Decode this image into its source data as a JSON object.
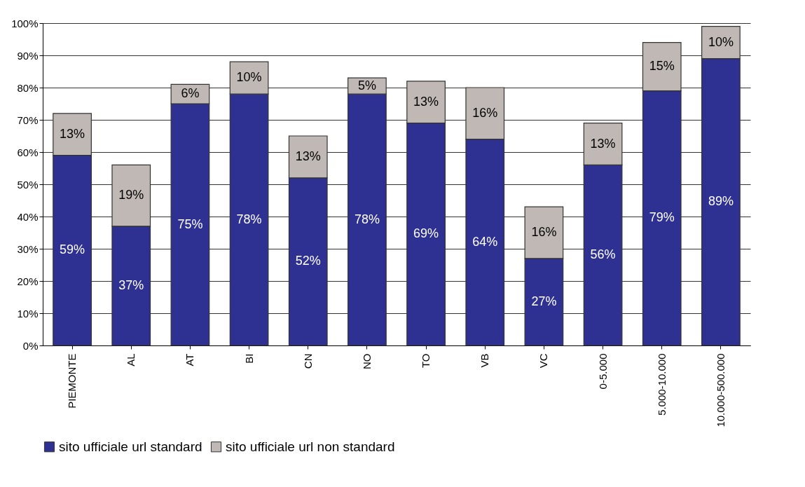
{
  "chart_data": {
    "type": "bar",
    "stacked": true,
    "categories": [
      "PIEMONTE",
      "AL",
      "AT",
      "BI",
      "CN",
      "NO",
      "TO",
      "VB",
      "VC",
      "0-5.000",
      "5.000-10.000",
      "10.000-500.000"
    ],
    "series": [
      {
        "name": "sito ufficiale url standard",
        "color": "#2e3192",
        "values": [
          59,
          37,
          75,
          78,
          52,
          78,
          69,
          64,
          27,
          56,
          79,
          89
        ],
        "value_labels": [
          "59%",
          "37%",
          "75%",
          "78%",
          "52%",
          "78%",
          "69%",
          "64%",
          "27%",
          "56%",
          "79%",
          "89%"
        ]
      },
      {
        "name": "sito ufficiale url non standard",
        "color": "#c0b8b4",
        "values": [
          13,
          19,
          6,
          10,
          13,
          5,
          13,
          16,
          16,
          13,
          15,
          10
        ],
        "value_labels": [
          "13%",
          "19%",
          "6%",
          "10%",
          "13%",
          "5%",
          "13%",
          "16%",
          "16%",
          "13%",
          "15%",
          "10%"
        ]
      }
    ],
    "ylim": [
      0,
      100
    ],
    "yticks": [
      {
        "value": 0,
        "label": "0%"
      },
      {
        "value": 10,
        "label": "10%"
      },
      {
        "value": 20,
        "label": "20%"
      },
      {
        "value": 30,
        "label": "30%"
      },
      {
        "value": 40,
        "label": "40%"
      },
      {
        "value": 50,
        "label": "50%"
      },
      {
        "value": 60,
        "label": "60%"
      },
      {
        "value": 70,
        "label": "70%"
      },
      {
        "value": 80,
        "label": "80%"
      },
      {
        "value": 90,
        "label": "90%"
      },
      {
        "value": 100,
        "label": "100%"
      }
    ],
    "grid": "y",
    "legend": "bottom"
  }
}
